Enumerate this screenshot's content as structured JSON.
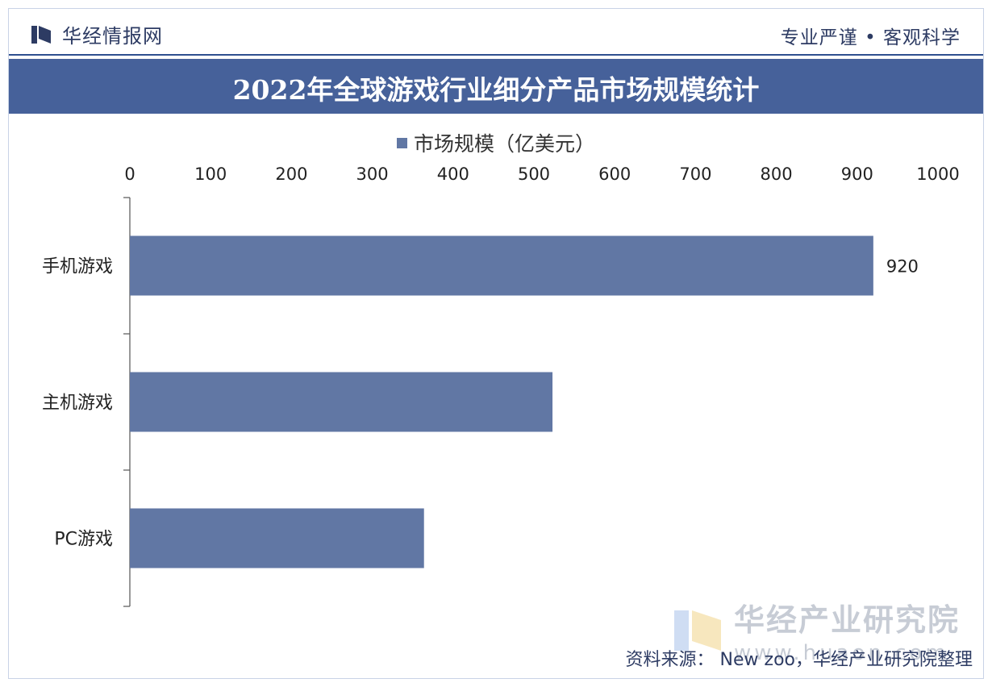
{
  "header": {
    "brand_name": "华经情报网",
    "slogan": "专业严谨 • 客观科学"
  },
  "chart_data": {
    "type": "bar",
    "orientation": "horizontal",
    "title": "2022年全球游戏行业细分产品市场规模统计",
    "categories": [
      "手机游戏",
      "主机游戏",
      "PC游戏"
    ],
    "series": [
      {
        "name": "市场规模（亿美元）",
        "values": [
          920,
          523,
          364
        ]
      }
    ],
    "data_labels": [
      "920",
      "",
      ""
    ],
    "xlim": [
      0,
      1000
    ],
    "x_ticks": [
      0,
      100,
      200,
      300,
      400,
      500,
      600,
      700,
      800,
      900,
      1000
    ],
    "x_axis_position": "top",
    "legend_position": "top",
    "grid": false,
    "bar_color": "#6177a4"
  },
  "watermark": {
    "name": "华经产业研究院",
    "url": "www.huaon.com"
  },
  "source": "资料来源： New zoo，华经产业研究院整理"
}
